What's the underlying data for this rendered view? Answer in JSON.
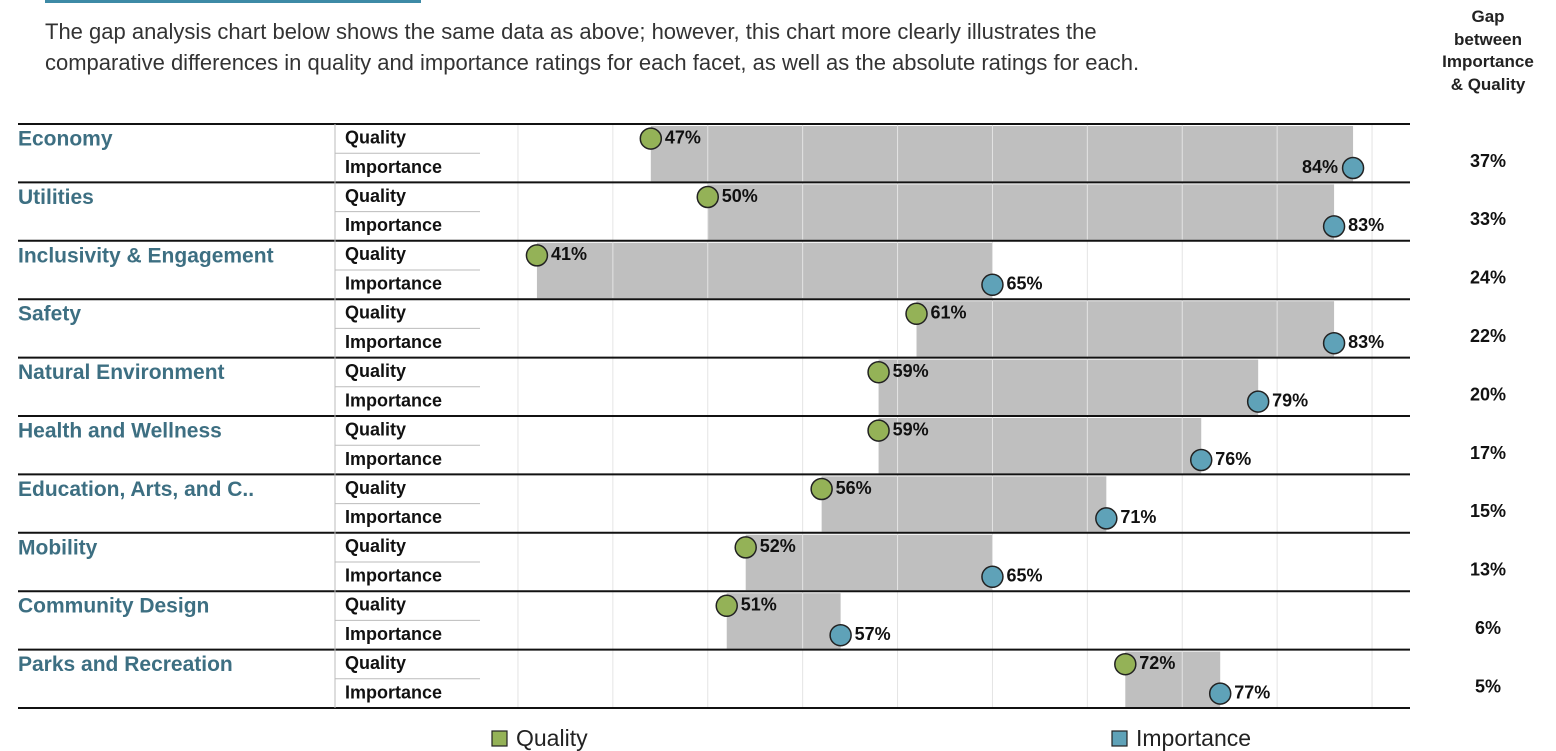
{
  "intro": "The gap analysis chart below shows the same data as above; however, this chart more clearly illustrates the comparative differences in quality and importance ratings for each facet, as well as the absolute ratings for each.",
  "chart_data": {
    "type": "dumbbell",
    "categories": [
      "Economy",
      "Utilities",
      "Inclusivity & Engagement",
      "Safety",
      "Natural Environment",
      "Health and Wellness",
      "Education, Arts, and C..",
      "Mobility",
      "Community Design",
      "Parks and Recreation"
    ],
    "series": [
      {
        "name": "Quality",
        "color": "#94b257",
        "values": [
          47,
          50,
          41,
          61,
          59,
          59,
          56,
          52,
          51,
          72
        ],
        "value_labels": [
          "47%",
          "50%",
          "41%",
          "61%",
          "59%",
          "59%",
          "56%",
          "52%",
          "51%",
          "72%"
        ]
      },
      {
        "name": "Importance",
        "color": "#5fa2b8",
        "values": [
          84,
          83,
          65,
          83,
          79,
          76,
          71,
          65,
          57,
          77
        ],
        "value_labels": [
          "84%",
          "83%",
          "65%",
          "83%",
          "79%",
          "76%",
          "71%",
          "65%",
          "57%",
          "77%"
        ]
      }
    ],
    "gap": {
      "title": [
        "Gap",
        "between",
        "Importance",
        "& Quality"
      ],
      "values": [
        37,
        33,
        24,
        22,
        20,
        17,
        15,
        13,
        6,
        5
      ],
      "value_labels": [
        "37%",
        "33%",
        "24%",
        "22%",
        "20%",
        "17%",
        "15%",
        "13%",
        "6%",
        "5%"
      ]
    },
    "bar_color": "#bfbfbf",
    "xlim": [
      38,
      87
    ],
    "xticks": [
      40,
      45,
      50,
      55,
      60,
      65,
      70,
      75,
      80,
      85
    ],
    "grid": true
  }
}
